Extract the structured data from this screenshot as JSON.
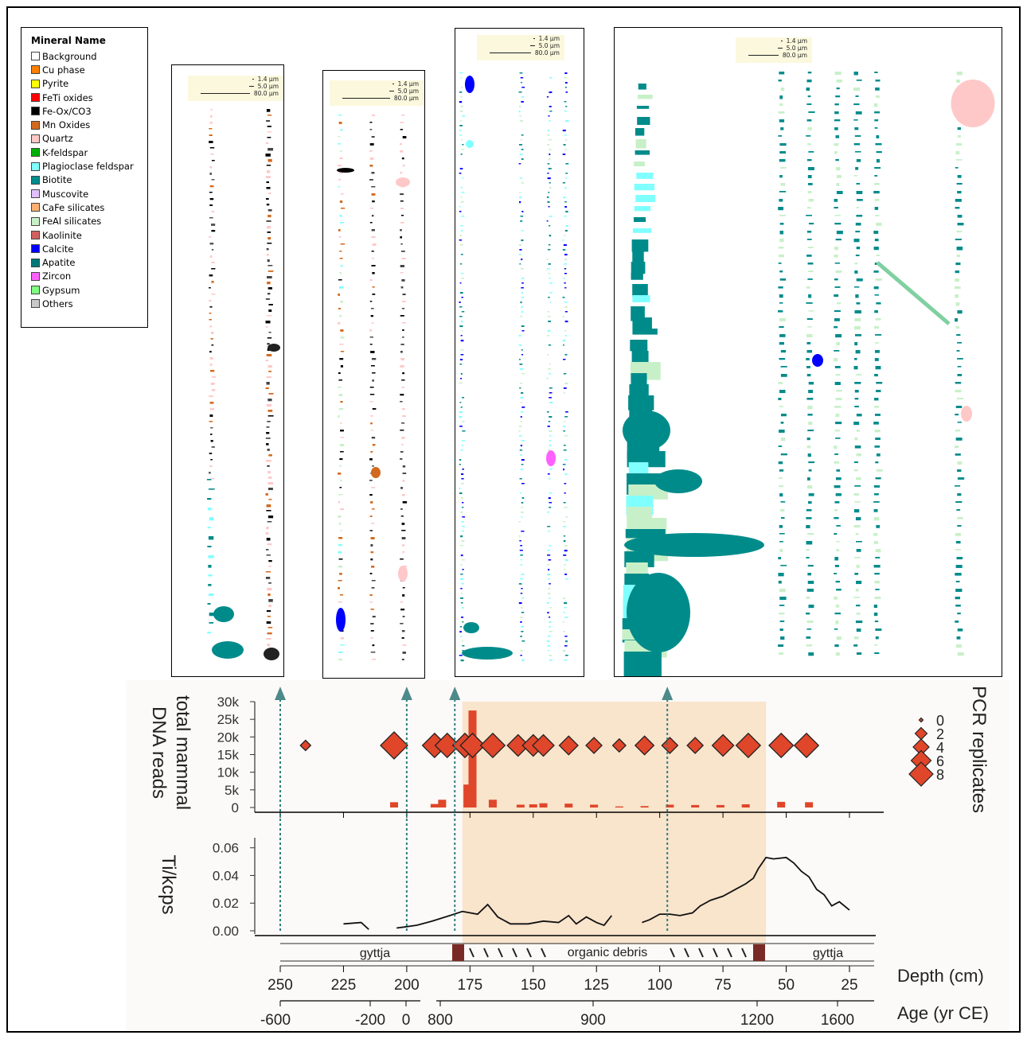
{
  "legend": {
    "title": "Mineral Name",
    "items": [
      {
        "label": "Background",
        "color": "#ffffff"
      },
      {
        "label": "Cu phase",
        "color": "#ff7f00"
      },
      {
        "label": "Pyrite",
        "color": "#ffff00"
      },
      {
        "label": "FeTi oxides",
        "color": "#ff0000"
      },
      {
        "label": "Fe-Ox/CO3",
        "color": "#000000"
      },
      {
        "label": "Mn Oxides",
        "color": "#d2691e"
      },
      {
        "label": "Quartz",
        "color": "#ffc8c8"
      },
      {
        "label": "K-feldspar",
        "color": "#00b000"
      },
      {
        "label": "Plagioclase feldspar",
        "color": "#80ffff"
      },
      {
        "label": "Biotite",
        "color": "#008b8b"
      },
      {
        "label": "Muscovite",
        "color": "#e0c0ff"
      },
      {
        "label": "CaFe silicates",
        "color": "#ffb070"
      },
      {
        "label": "FeAl silicates",
        "color": "#c8f0c8"
      },
      {
        "label": "Kaolinite",
        "color": "#d06060"
      },
      {
        "label": "Calcite",
        "color": "#0000ff"
      },
      {
        "label": "Apatite",
        "color": "#007878"
      },
      {
        "label": "Zircon",
        "color": "#ff60ff"
      },
      {
        "label": "Gypsum",
        "color": "#80ff80"
      },
      {
        "label": "Others",
        "color": "#c8c8c8"
      }
    ]
  },
  "scale_labels": [
    "1.4 µm",
    "5.0 µm",
    "80.0 µm"
  ],
  "chart_data": [
    {
      "type": "bar",
      "ylabel": "total mammal DNA reads",
      "yticks": [
        "0",
        "5k",
        "10k",
        "15k",
        "20k",
        "25k",
        "30k"
      ],
      "ylim": [
        0,
        30000
      ],
      "bars": [
        {
          "depth": 205,
          "reads": 1500
        },
        {
          "depth": 189,
          "reads": 1000
        },
        {
          "depth": 186,
          "reads": 2200
        },
        {
          "depth": 176,
          "reads": 6500
        },
        {
          "depth": 174,
          "reads": 27500
        },
        {
          "depth": 166,
          "reads": 2200
        },
        {
          "depth": 155,
          "reads": 800
        },
        {
          "depth": 150,
          "reads": 900
        },
        {
          "depth": 146,
          "reads": 1200
        },
        {
          "depth": 136,
          "reads": 1100
        },
        {
          "depth": 126,
          "reads": 800
        },
        {
          "depth": 116,
          "reads": 300
        },
        {
          "depth": 106,
          "reads": 400
        },
        {
          "depth": 96,
          "reads": 800
        },
        {
          "depth": 86,
          "reads": 700
        },
        {
          "depth": 76,
          "reads": 700
        },
        {
          "depth": 66,
          "reads": 900
        },
        {
          "depth": 52,
          "reads": 1600
        },
        {
          "depth": 41,
          "reads": 1500
        }
      ],
      "pcr_replicates": [
        {
          "depth": 240,
          "n": 2
        },
        {
          "depth": 205,
          "n": 8
        },
        {
          "depth": 189,
          "n": 7
        },
        {
          "depth": 184,
          "n": 7
        },
        {
          "depth": 177,
          "n": 7
        },
        {
          "depth": 174,
          "n": 7
        },
        {
          "depth": 166,
          "n": 7
        },
        {
          "depth": 156,
          "n": 6
        },
        {
          "depth": 150,
          "n": 6
        },
        {
          "depth": 146,
          "n": 6
        },
        {
          "depth": 136,
          "n": 5
        },
        {
          "depth": 126,
          "n": 4
        },
        {
          "depth": 116,
          "n": 3
        },
        {
          "depth": 106,
          "n": 5
        },
        {
          "depth": 96,
          "n": 4
        },
        {
          "depth": 86,
          "n": 4
        },
        {
          "depth": 75,
          "n": 6
        },
        {
          "depth": 65,
          "n": 7
        },
        {
          "depth": 52,
          "n": 7
        },
        {
          "depth": 42,
          "n": 7
        }
      ],
      "pcr_legend_title": "PCR replicates",
      "pcr_legend_levels": [
        "0",
        "2",
        "4",
        "6",
        "8"
      ]
    },
    {
      "type": "line",
      "ylabel": "Ti/kcps",
      "yticks": [
        "0.00",
        "0.02",
        "0.04",
        "0.06"
      ],
      "ylim": [
        0,
        0.065
      ],
      "segments": [
        [
          [
            225,
            0.005
          ],
          [
            218,
            0.006
          ],
          [
            215,
            0.001
          ]
        ],
        [
          [
            204,
            0.002
          ],
          [
            196,
            0.004
          ],
          [
            190,
            0.007
          ],
          [
            183,
            0.011
          ],
          [
            178,
            0.014
          ],
          [
            172,
            0.012
          ],
          [
            168,
            0.019
          ],
          [
            164,
            0.01
          ],
          [
            159,
            0.005
          ],
          [
            152,
            0.005
          ],
          [
            146,
            0.007
          ],
          [
            140,
            0.006
          ],
          [
            136,
            0.011
          ],
          [
            133,
            0.005
          ],
          [
            129,
            0.01
          ],
          [
            125,
            0.006
          ],
          [
            122,
            0.004
          ],
          [
            119,
            0.011
          ]
        ],
        [
          [
            107,
            0.006
          ],
          [
            104,
            0.008
          ],
          [
            100,
            0.012
          ],
          [
            96,
            0.012
          ],
          [
            92,
            0.011
          ],
          [
            87,
            0.013
          ],
          [
            84,
            0.018
          ],
          [
            80,
            0.022
          ],
          [
            75,
            0.025
          ],
          [
            70,
            0.03
          ],
          [
            66,
            0.034
          ],
          [
            63,
            0.038
          ],
          [
            61,
            0.045
          ],
          [
            58,
            0.053
          ],
          [
            55,
            0.052
          ],
          [
            50,
            0.053
          ],
          [
            47,
            0.049
          ],
          [
            44,
            0.043
          ],
          [
            41,
            0.039
          ],
          [
            38,
            0.03
          ],
          [
            35,
            0.026
          ],
          [
            32,
            0.018
          ],
          [
            29,
            0.021
          ],
          [
            25,
            0.015
          ]
        ]
      ],
      "shaded_interval": [
        178,
        58
      ]
    }
  ],
  "sample_depths": [
    250,
    200,
    181,
    97
  ],
  "lithology": {
    "left": "gyttja",
    "middle": "organic debris",
    "right": "gyttja"
  },
  "depth_axis": {
    "label": "Depth (cm)",
    "ticks": [
      "250",
      "225",
      "200",
      "175",
      "150",
      "125",
      "100",
      "75",
      "50",
      "25"
    ]
  },
  "age_axis": {
    "label": "Age (yr CE)",
    "ticks": [
      "-600",
      "-200",
      "0",
      "800",
      "900",
      "1200",
      "1600"
    ]
  }
}
